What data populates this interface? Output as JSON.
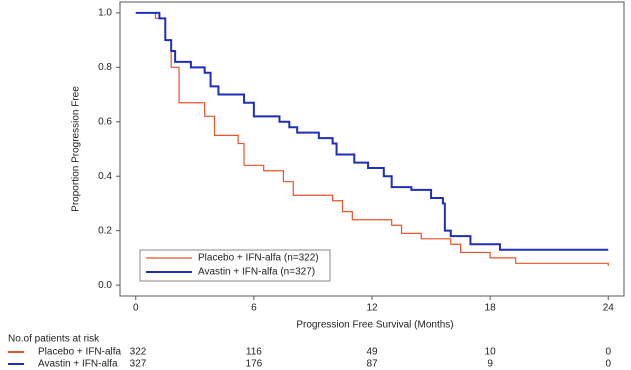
{
  "chart_data": {
    "type": "step",
    "xlabel": "Progression Free Survival (Months)",
    "ylabel": "Proportion Progression Free",
    "xlim": [
      -0.8,
      24.8
    ],
    "ylim": [
      -0.04,
      1.04
    ],
    "xticks": [
      0,
      6,
      12,
      18,
      24
    ],
    "yticks": [
      {
        "value": 0,
        "label": "0.0"
      },
      {
        "value": 0.2,
        "label": "0.2"
      },
      {
        "value": 0.4,
        "label": "0.4"
      },
      {
        "value": 0.6,
        "label": "0.6"
      },
      {
        "value": 0.8,
        "label": "0.8"
      },
      {
        "value": 1,
        "label": "1.0"
      }
    ],
    "legend": "lower left",
    "series": [
      {
        "name": "Placebo + IFN-alfa (n=322)",
        "color": "#e8542a",
        "x": [
          0,
          1.0,
          1.5,
          1.8,
          2.2,
          3.5,
          4.0,
          5.2,
          5.5,
          6.5,
          7.5,
          8.0,
          10.0,
          10.5,
          11.0,
          13.0,
          13.5,
          14.5,
          16.0,
          16.5,
          18.0,
          19.3,
          24.0
        ],
        "values": [
          1.0,
          0.98,
          0.9,
          0.8,
          0.67,
          0.62,
          0.55,
          0.52,
          0.44,
          0.42,
          0.38,
          0.33,
          0.31,
          0.27,
          0.24,
          0.22,
          0.19,
          0.17,
          0.15,
          0.12,
          0.1,
          0.08,
          0.07
        ]
      },
      {
        "name": "Avastin + IFN-alfa (n=327)",
        "color": "#1f2fb8",
        "x": [
          0,
          1.2,
          1.5,
          1.8,
          2.0,
          2.8,
          3.5,
          3.8,
          4.2,
          5.5,
          6.0,
          7.3,
          7.8,
          8.2,
          9.3,
          10.0,
          10.2,
          11.1,
          11.8,
          12.6,
          13.0,
          14.0,
          15.0,
          15.6,
          15.7,
          16.0,
          17.0,
          18.5,
          24.0
        ],
        "values": [
          1.0,
          0.98,
          0.9,
          0.86,
          0.82,
          0.8,
          0.78,
          0.73,
          0.7,
          0.67,
          0.62,
          0.6,
          0.58,
          0.56,
          0.54,
          0.52,
          0.48,
          0.45,
          0.43,
          0.4,
          0.36,
          0.35,
          0.32,
          0.3,
          0.2,
          0.18,
          0.15,
          0.13,
          0.13
        ]
      }
    ],
    "risk_table": {
      "title": "No.of patients at risk",
      "rows": [
        {
          "name": "Placebo + IFN-alfa",
          "color": "#e8542a",
          "values": [
            322,
            116,
            49,
            10,
            0
          ]
        },
        {
          "name": "Avastin + IFN-alfa",
          "color": "#1f2fb8",
          "values": [
            327,
            176,
            87,
            9,
            0
          ]
        }
      ]
    }
  }
}
